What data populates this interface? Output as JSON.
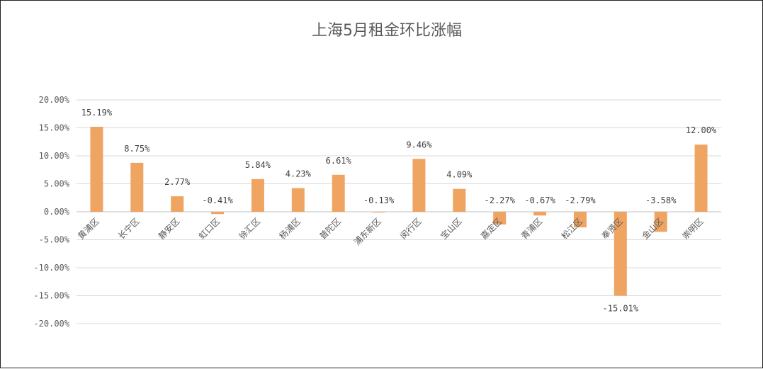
{
  "chart_data": {
    "type": "bar",
    "title": "上海5月租金环比涨幅",
    "categories": [
      "黄浦区",
      "长宁区",
      "静安区",
      "虹口区",
      "徐汇区",
      "杨浦区",
      "普陀区",
      "浦东新区",
      "闵行区",
      "宝山区",
      "嘉定区",
      "青浦区",
      "松江区",
      "奉贤区",
      "金山区",
      "崇明区"
    ],
    "values": [
      15.19,
      8.75,
      2.77,
      -0.41,
      5.84,
      4.23,
      6.61,
      -0.13,
      9.46,
      4.09,
      -2.27,
      -0.67,
      -2.79,
      -15.01,
      -3.58,
      12.0
    ],
    "data_labels": [
      "15.19%",
      "8.75%",
      "2.77%",
      "-0.41%",
      "5.84%",
      "4.23%",
      "6.61%",
      "-0.13%",
      "9.46%",
      "4.09%",
      "-2.27%",
      "-0.67%",
      "-2.79%",
      "-15.01%",
      "-3.58%",
      "12.00%"
    ],
    "y_ticks": [
      "20.00%",
      "15.00%",
      "10.00%",
      "5.00%",
      "0.00%",
      "-5.00%",
      "-10.00%",
      "-15.00%",
      "-20.00%"
    ],
    "ylim": [
      -20,
      20
    ],
    "grid": true,
    "bar_color": "#F0A462",
    "legend": false
  }
}
